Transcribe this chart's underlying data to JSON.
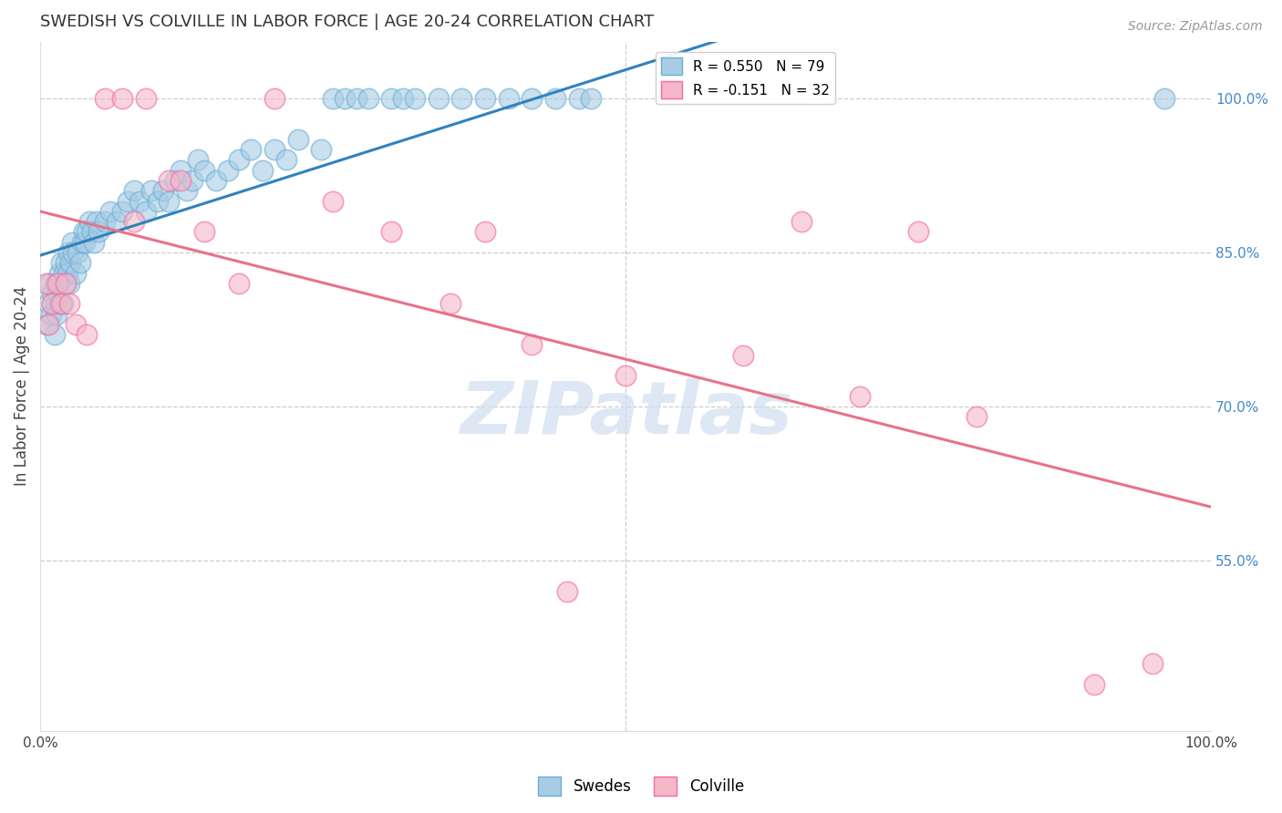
{
  "title": "SWEDISH VS COLVILLE IN LABOR FORCE | AGE 20-24 CORRELATION CHART",
  "source": "Source: ZipAtlas.com",
  "ylabel": "In Labor Force | Age 20-24",
  "xlim": [
    0.0,
    1.0
  ],
  "ylim": [
    0.385,
    1.055
  ],
  "right_yticks": [
    1.0,
    0.85,
    0.7,
    0.55
  ],
  "right_yticklabels": [
    "100.0%",
    "85.0%",
    "70.0%",
    "55.0%"
  ],
  "xtick_positions": [
    0.0,
    1.0
  ],
  "xticklabels": [
    "0.0%",
    "100.0%"
  ],
  "legend_blue_label": "R = 0.550   N = 79",
  "legend_pink_label": "R = -0.151   N = 32",
  "swede_color": "#a8cce4",
  "colville_color": "#f4b8c8",
  "swede_edge_color": "#6baed6",
  "colville_edge_color": "#f768a1",
  "swede_line_color": "#3182bd",
  "colville_line_color": "#e8728a",
  "watermark_color": "#d0ddf0",
  "swedes_x": [
    0.005,
    0.007,
    0.008,
    0.009,
    0.01,
    0.012,
    0.013,
    0.013,
    0.014,
    0.015,
    0.016,
    0.016,
    0.017,
    0.018,
    0.019,
    0.02,
    0.021,
    0.022,
    0.023,
    0.024,
    0.025,
    0.026,
    0.027,
    0.028,
    0.03,
    0.032,
    0.034,
    0.036,
    0.037,
    0.038,
    0.04,
    0.042,
    0.044,
    0.046,
    0.048,
    0.05,
    0.055,
    0.06,
    0.065,
    0.07,
    0.075,
    0.08,
    0.085,
    0.09,
    0.095,
    0.1,
    0.105,
    0.11,
    0.115,
    0.12,
    0.125,
    0.13,
    0.135,
    0.14,
    0.15,
    0.16,
    0.17,
    0.18,
    0.19,
    0.2,
    0.21,
    0.22,
    0.24,
    0.25,
    0.26,
    0.27,
    0.28,
    0.3,
    0.31,
    0.32,
    0.34,
    0.36,
    0.38,
    0.4,
    0.42,
    0.44,
    0.46,
    0.47,
    0.96
  ],
  "swedes_y": [
    0.78,
    0.8,
    0.82,
    0.79,
    0.81,
    0.77,
    0.8,
    0.82,
    0.79,
    0.81,
    0.83,
    0.8,
    0.82,
    0.84,
    0.8,
    0.83,
    0.82,
    0.84,
    0.83,
    0.85,
    0.82,
    0.84,
    0.86,
    0.85,
    0.83,
    0.85,
    0.84,
    0.86,
    0.87,
    0.86,
    0.87,
    0.88,
    0.87,
    0.86,
    0.88,
    0.87,
    0.88,
    0.89,
    0.88,
    0.89,
    0.9,
    0.91,
    0.9,
    0.89,
    0.91,
    0.9,
    0.91,
    0.9,
    0.92,
    0.93,
    0.91,
    0.92,
    0.94,
    0.93,
    0.92,
    0.93,
    0.94,
    0.95,
    0.93,
    0.95,
    0.94,
    0.96,
    0.95,
    1.0,
    1.0,
    1.0,
    1.0,
    1.0,
    1.0,
    1.0,
    1.0,
    1.0,
    1.0,
    1.0,
    1.0,
    1.0,
    1.0,
    1.0,
    1.0
  ],
  "colville_x": [
    0.005,
    0.007,
    0.01,
    0.015,
    0.018,
    0.022,
    0.025,
    0.03,
    0.04,
    0.055,
    0.07,
    0.09,
    0.11,
    0.14,
    0.17,
    0.2,
    0.25,
    0.3,
    0.35,
    0.42,
    0.5,
    0.6,
    0.7,
    0.75,
    0.8,
    0.9,
    0.95,
    0.12,
    0.08,
    0.38,
    0.45,
    0.65
  ],
  "colville_y": [
    0.82,
    0.78,
    0.8,
    0.82,
    0.8,
    0.82,
    0.8,
    0.78,
    0.77,
    1.0,
    1.0,
    1.0,
    0.92,
    0.87,
    0.82,
    1.0,
    0.9,
    0.87,
    0.8,
    0.76,
    0.73,
    0.75,
    0.71,
    0.87,
    0.69,
    0.43,
    0.45,
    0.92,
    0.88,
    0.87,
    0.52,
    0.88
  ]
}
